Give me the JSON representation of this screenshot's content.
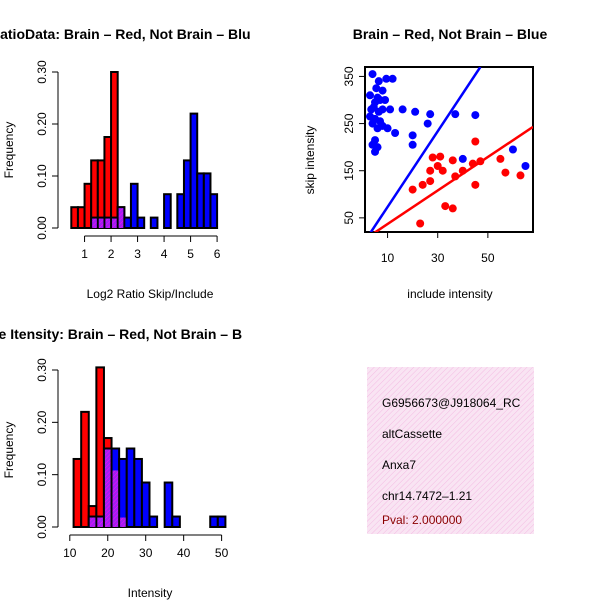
{
  "colors": {
    "red": "#ff0000",
    "blue": "#0000ff",
    "purple": "#a020f0",
    "info_bg": "#f7dcef",
    "pval": "#8b0000"
  },
  "chart_data": [
    {
      "id": "ratio-hist",
      "type": "bar",
      "title": "RatioData: Brain – Red, Not Brain – Blu",
      "xlabel": "Log2 Ratio Skip/Include",
      "ylabel": "Frequency",
      "xlim": [
        0.3,
        6.6
      ],
      "ylim": [
        0,
        0.3
      ],
      "xticks": [
        "1",
        "2",
        "3",
        "4",
        "5",
        "6"
      ],
      "xtick_values": [
        1,
        2,
        3,
        4,
        5,
        6
      ],
      "yticks": [
        "0.00",
        "0.10",
        "0.20",
        "0.30"
      ],
      "ytick_values": [
        0,
        0.1,
        0.2,
        0.3
      ],
      "bin_width": 0.25,
      "series": [
        {
          "name": "Brain",
          "color": "red",
          "bins": [
            [
              0.5,
              0.04
            ],
            [
              0.75,
              0.04
            ],
            [
              1.0,
              0.085
            ],
            [
              1.25,
              0.13
            ],
            [
              1.5,
              0.13
            ],
            [
              1.75,
              0.175
            ],
            [
              2.0,
              0.3
            ],
            [
              2.25,
              0.04
            ]
          ]
        },
        {
          "name": "Not Brain",
          "color": "blue",
          "bins": [
            [
              1.25,
              0.02
            ],
            [
              1.5,
              0.02
            ],
            [
              1.75,
              0.02
            ],
            [
              2.0,
              0.02
            ],
            [
              2.25,
              0.04
            ],
            [
              2.5,
              0.02
            ],
            [
              2.75,
              0.085
            ],
            [
              3.0,
              0.02
            ],
            [
              3.5,
              0.02
            ],
            [
              4.0,
              0.065
            ],
            [
              4.5,
              0.065
            ],
            [
              4.75,
              0.13
            ],
            [
              5.0,
              0.22
            ],
            [
              5.25,
              0.105
            ],
            [
              5.5,
              0.105
            ],
            [
              5.75,
              0.065
            ]
          ]
        }
      ],
      "overlap": [
        [
          1.25,
          0.02
        ],
        [
          1.5,
          0.02
        ],
        [
          1.75,
          0.02
        ],
        [
          2.0,
          0.02
        ],
        [
          2.25,
          0.04
        ]
      ]
    },
    {
      "id": "intensity-scatter",
      "type": "scatter",
      "title": "Brain – Red, Not Brain – Blue",
      "xlabel": "include intensity",
      "ylabel": "skip intensity",
      "xlim": [
        1,
        68
      ],
      "ylim": [
        20,
        370
      ],
      "xticks": [
        "10",
        "30",
        "50"
      ],
      "xtick_values": [
        10,
        30,
        50
      ],
      "yticks": [
        "50",
        "150",
        "250",
        "350"
      ],
      "ytick_values": [
        50,
        150,
        250,
        350
      ],
      "series": [
        {
          "name": "Not Brain",
          "color": "blue",
          "points": [
            [
              4.0,
              355
            ],
            [
              6.5,
              340
            ],
            [
              9.5,
              345
            ],
            [
              12,
              345
            ],
            [
              5.5,
              325
            ],
            [
              8.0,
              320
            ],
            [
              3.0,
              310
            ],
            [
              6.0,
              305
            ],
            [
              7.0,
              300
            ],
            [
              5.0,
              295
            ],
            [
              9.0,
              300
            ],
            [
              4.5,
              285
            ],
            [
              3.5,
              280
            ],
            [
              8.0,
              280
            ],
            [
              6.5,
              275
            ],
            [
              11,
              280
            ],
            [
              16,
              280
            ],
            [
              21,
              275
            ],
            [
              27,
              270
            ],
            [
              37,
              270
            ],
            [
              45,
              268
            ],
            [
              3.0,
              265
            ],
            [
              5.0,
              260
            ],
            [
              7.0,
              255
            ],
            [
              4.0,
              250
            ],
            [
              8.0,
              245
            ],
            [
              6.0,
              240
            ],
            [
              10,
              240
            ],
            [
              13,
              230
            ],
            [
              20,
              225
            ],
            [
              26,
              250
            ],
            [
              5.0,
              215
            ],
            [
              4.0,
              205
            ],
            [
              6.0,
              200
            ],
            [
              5.0,
              190
            ],
            [
              20,
              205
            ],
            [
              40,
              175
            ],
            [
              60,
              195
            ],
            [
              65,
              160
            ]
          ]
        },
        {
          "name": "Brain",
          "color": "red",
          "points": [
            [
              45,
              212
            ],
            [
              28,
              178
            ],
            [
              31,
              180
            ],
            [
              36,
              172
            ],
            [
              30,
              160
            ],
            [
              27,
              150
            ],
            [
              32,
              150
            ],
            [
              40,
              150
            ],
            [
              44,
              165
            ],
            [
              55,
              175
            ],
            [
              47,
              170
            ],
            [
              57,
              146
            ],
            [
              63,
              140
            ],
            [
              37,
              138
            ],
            [
              27,
              128
            ],
            [
              24,
              120
            ],
            [
              45,
              120
            ],
            [
              20,
              110
            ],
            [
              33,
              75
            ],
            [
              36,
              70
            ],
            [
              23,
              38
            ]
          ]
        }
      ],
      "lines": [
        {
          "color": "blue",
          "from": [
            1,
            1
          ],
          "to": [
            47,
            370
          ]
        },
        {
          "color": "red",
          "from": [
            1,
            5
          ],
          "to": [
            68,
            243
          ]
        }
      ]
    },
    {
      "id": "intensity-hist",
      "type": "bar",
      "title": "ne Itensity: Brain – Red, Not Brain – B",
      "xlabel": "Intensity",
      "ylabel": "Frequency",
      "xlim": [
        9,
        53
      ],
      "ylim": [
        0,
        0.3
      ],
      "xticks": [
        "10",
        "20",
        "30",
        "40",
        "50"
      ],
      "xtick_values": [
        10,
        20,
        30,
        40,
        50
      ],
      "yticks": [
        "0.00",
        "0.10",
        "0.20",
        "0.30"
      ],
      "ytick_values": [
        0,
        0.1,
        0.2,
        0.3
      ],
      "bin_width": 2,
      "series": [
        {
          "name": "Brain",
          "color": "red",
          "bins": [
            [
              11,
              0.13
            ],
            [
              13,
              0.22
            ],
            [
              15,
              0.04
            ],
            [
              17,
              0.305
            ],
            [
              19,
              0.17
            ],
            [
              21,
              0.11
            ],
            [
              23,
              0.02
            ]
          ]
        },
        {
          "name": "Not Brain",
          "color": "blue",
          "bins": [
            [
              15,
              0.02
            ],
            [
              17,
              0.02
            ],
            [
              19,
              0.15
            ],
            [
              21,
              0.15
            ],
            [
              23,
              0.13
            ],
            [
              25,
              0.15
            ],
            [
              27,
              0.13
            ],
            [
              29,
              0.085
            ],
            [
              31,
              0.02
            ],
            [
              35,
              0.085
            ],
            [
              37,
              0.02
            ],
            [
              47,
              0.02
            ],
            [
              49,
              0.02
            ]
          ]
        }
      ],
      "overlap": [
        [
          15,
          0.02
        ],
        [
          17,
          0.02
        ],
        [
          19,
          0.15
        ],
        [
          21,
          0.11
        ],
        [
          23,
          0.02
        ]
      ]
    }
  ],
  "info": {
    "id_text": "G6956673@J918064_RC",
    "event_type": "altCassette",
    "gene": "Anxa7",
    "location": "chr14.7472–1.21",
    "pval": "Pval: 2.000000"
  }
}
